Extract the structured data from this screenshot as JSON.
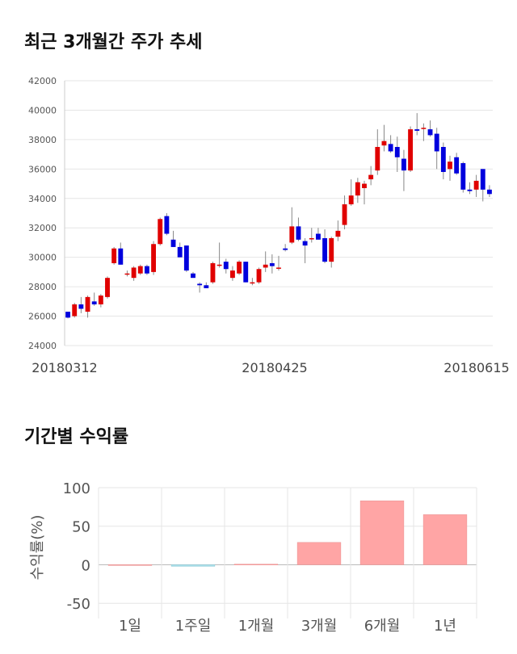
{
  "section1": {
    "title": "최근 3개월간 주가 추세"
  },
  "section2": {
    "title": "기간별 수익률"
  },
  "colors": {
    "up": "#e00000",
    "down": "#0000dd",
    "bar_pos": "#ffa5a5",
    "bar_neg": "#a8e0ea",
    "grid": "#e6e6e6"
  },
  "chart_data": [
    {
      "type": "candlestick",
      "title": "최근 3개월간 주가 추세",
      "ylim": [
        24000,
        42000
      ],
      "y_ticks": [
        24000,
        26000,
        28000,
        30000,
        32000,
        34000,
        36000,
        38000,
        40000,
        42000
      ],
      "x_ticks": [
        "20180312",
        "20180425",
        "20180615"
      ],
      "ohlc": [
        [
          26300,
          26300,
          25850,
          25900
        ],
        [
          26000,
          26900,
          25900,
          26800
        ],
        [
          26800,
          27300,
          26200,
          26500
        ],
        [
          26300,
          27400,
          25900,
          27300
        ],
        [
          27000,
          27600,
          26700,
          26800
        ],
        [
          26800,
          27500,
          26600,
          27400
        ],
        [
          27300,
          28700,
          27200,
          28600
        ],
        [
          29600,
          30700,
          29500,
          30600
        ],
        [
          30600,
          31000,
          29500,
          29500
        ],
        [
          28900,
          29100,
          28700,
          28900
        ],
        [
          28600,
          29400,
          28400,
          29300
        ],
        [
          28900,
          29500,
          28800,
          29400
        ],
        [
          29400,
          29500,
          28800,
          28900
        ],
        [
          29000,
          31100,
          28800,
          30900
        ],
        [
          30900,
          32700,
          30800,
          32600
        ],
        [
          32800,
          33000,
          31500,
          31600
        ],
        [
          31200,
          31800,
          30700,
          30700
        ],
        [
          30700,
          31000,
          30000,
          30000
        ],
        [
          30800,
          30800,
          29000,
          29100
        ],
        [
          28900,
          29000,
          28600,
          28600
        ],
        [
          28200,
          28300,
          27600,
          28100
        ],
        [
          28100,
          28300,
          27900,
          27900
        ],
        [
          28300,
          29700,
          28200,
          29600
        ],
        [
          29500,
          31000,
          29300,
          29500
        ],
        [
          29700,
          29900,
          28900,
          29200
        ],
        [
          28600,
          29400,
          28400,
          29100
        ],
        [
          28900,
          29800,
          28800,
          29700
        ],
        [
          29700,
          29700,
          28300,
          28300
        ],
        [
          28300,
          28600,
          28100,
          28300
        ],
        [
          28300,
          29300,
          28200,
          29200
        ],
        [
          29300,
          30400,
          29000,
          29500
        ],
        [
          29600,
          30200,
          28900,
          29400
        ],
        [
          29300,
          30100,
          29100,
          29300
        ],
        [
          30600,
          30900,
          30400,
          30500
        ],
        [
          31000,
          33400,
          30900,
          32100
        ],
        [
          32100,
          32700,
          31100,
          31200
        ],
        [
          31100,
          31300,
          29600,
          30800
        ],
        [
          31300,
          32000,
          31000,
          31300
        ],
        [
          31600,
          32000,
          31200,
          31200
        ],
        [
          31300,
          31900,
          29600,
          29700
        ],
        [
          29700,
          31400,
          29300,
          31300
        ],
        [
          31400,
          32500,
          31100,
          31800
        ],
        [
          32200,
          34200,
          31900,
          33600
        ],
        [
          33600,
          35300,
          33500,
          34200
        ],
        [
          34200,
          35400,
          33700,
          35100
        ],
        [
          34700,
          35200,
          33600,
          35000
        ],
        [
          35300,
          36200,
          34900,
          35600
        ],
        [
          35900,
          38700,
          35600,
          37500
        ],
        [
          37600,
          39000,
          37200,
          37900
        ],
        [
          37700,
          38300,
          37100,
          37200
        ],
        [
          37500,
          38200,
          35800,
          36800
        ],
        [
          36700,
          37300,
          34500,
          35900
        ],
        [
          35900,
          38900,
          35800,
          38700
        ],
        [
          38700,
          39800,
          38300,
          38600
        ],
        [
          38800,
          39100,
          37900,
          38800
        ],
        [
          38700,
          39300,
          38200,
          38300
        ],
        [
          38400,
          38800,
          36000,
          37200
        ],
        [
          37500,
          37800,
          35300,
          35800
        ],
        [
          36000,
          36900,
          35200,
          36500
        ],
        [
          36800,
          37100,
          35600,
          35700
        ],
        [
          36400,
          36500,
          34400,
          34600
        ],
        [
          34600,
          35100,
          34300,
          34500
        ],
        [
          34600,
          35600,
          34100,
          35200
        ],
        [
          36000,
          36000,
          33800,
          34600
        ],
        [
          34600,
          34900,
          34100,
          34300
        ]
      ]
    },
    {
      "type": "bar",
      "title": "기간별 수익률",
      "ylabel": "수익률(%)",
      "ylim": [
        -55,
        100
      ],
      "y_ticks": [
        -50,
        0,
        50,
        100
      ],
      "categories": [
        "1일",
        "1주일",
        "1개월",
        "3개월",
        "6개월",
        "1년"
      ],
      "values": [
        0.1,
        -2,
        0.8,
        29,
        83,
        65
      ]
    }
  ]
}
